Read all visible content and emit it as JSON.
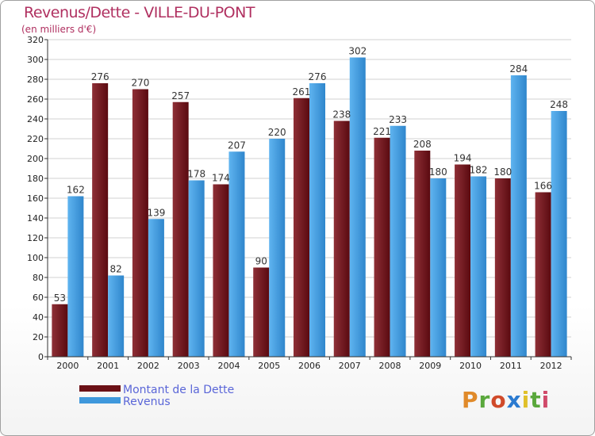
{
  "title": "Revenus/Dette - VILLE-DU-PONT",
  "subtitle": "(en milliers d'€)",
  "colors": {
    "dette": "#6b1016",
    "revenus": "#3f98dc",
    "title": "#b03060"
  },
  "legend": {
    "dette_label": "Montant de la Dette",
    "revenus_label": "Revenus"
  },
  "logo": {
    "text": "Proxiti"
  },
  "chart_data": {
    "type": "bar",
    "title": "Revenus/Dette - VILLE-DU-PONT",
    "ylabel": "(en milliers d'€)",
    "xlabel": "",
    "ylim": [
      0,
      320
    ],
    "ytick_step": 20,
    "grid": true,
    "legend_position": "bottom-left",
    "categories": [
      "2000",
      "2001",
      "2002",
      "2003",
      "2004",
      "2005",
      "2006",
      "2007",
      "2008",
      "2009",
      "2010",
      "2011",
      "2012"
    ],
    "series": [
      {
        "name": "Montant de la Dette",
        "values": [
          53,
          276,
          270,
          257,
          174,
          90,
          261,
          238,
          221,
          208,
          194,
          180,
          166
        ]
      },
      {
        "name": "Revenus",
        "values": [
          162,
          82,
          139,
          178,
          207,
          220,
          276,
          302,
          233,
          180,
          182,
          284,
          248
        ]
      }
    ]
  }
}
